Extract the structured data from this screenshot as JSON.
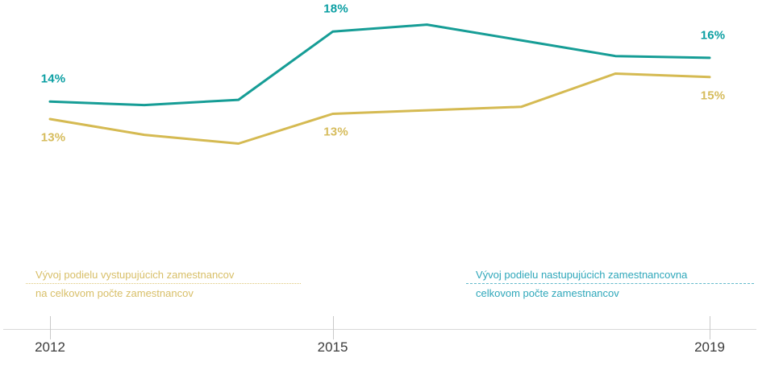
{
  "chart_data": {
    "type": "line",
    "x": [
      2012,
      2013,
      2014,
      2015,
      2016,
      2017,
      2018,
      2019
    ],
    "x_axis_ticks": [
      2012,
      2015,
      2019
    ],
    "grid": false,
    "ylim": [
      11,
      19.5
    ],
    "series": [
      {
        "key": "nastupujuci",
        "name": "Vývoj podielu nastupujúcich zamestnancov na celkovom počte zamestnancov",
        "color": "#169D96",
        "label_color": "#0B9FA3",
        "values": [
          14.0,
          13.8,
          14.1,
          18.0,
          18.4,
          17.5,
          16.6,
          16.5
        ]
      },
      {
        "key": "vystupujuci",
        "name": "Vývoj podielu vystupujúcich zamestnancov na celkovom počte zamestnancov",
        "color": "#D5BA52",
        "label_color": "#D6BC5C",
        "values": [
          13.0,
          12.1,
          11.6,
          13.3,
          13.5,
          13.7,
          15.6,
          15.4
        ]
      }
    ],
    "point_labels": [
      {
        "series": "nastupujuci",
        "year": 2012,
        "text": "14%"
      },
      {
        "series": "nastupujuci",
        "year": 2015,
        "text": "18%"
      },
      {
        "series": "nastupujuci",
        "year": 2019,
        "text": "16%"
      },
      {
        "series": "vystupujuci",
        "year": 2012,
        "text": "13%"
      },
      {
        "series": "vystupujuci",
        "year": 2015,
        "text": "13%"
      },
      {
        "series": "vystupujuci",
        "year": 2019,
        "text": "15%"
      }
    ]
  },
  "axis": {
    "tick_labels": [
      "2012",
      "2015",
      "2019"
    ],
    "label_color": "#3C3C3C",
    "line_color": "#D8D8D8",
    "tick_color": "#C9C9C9"
  },
  "legend": {
    "left": {
      "line1": "Vývoj podielu vystupujúcich zamestnancov",
      "line2": "na celkovom počte zamestnancov",
      "color": "#D8BF68",
      "rule_color": "#DFC87A",
      "rule_style": "dotted"
    },
    "right": {
      "line1": "Vývoj podielu nastupujúcich zamestnancovna",
      "line2": "celkovom počte zamestnancov",
      "color": "#2EA7BA",
      "rule_color": "#63BACB",
      "rule_style": "dashed"
    }
  }
}
